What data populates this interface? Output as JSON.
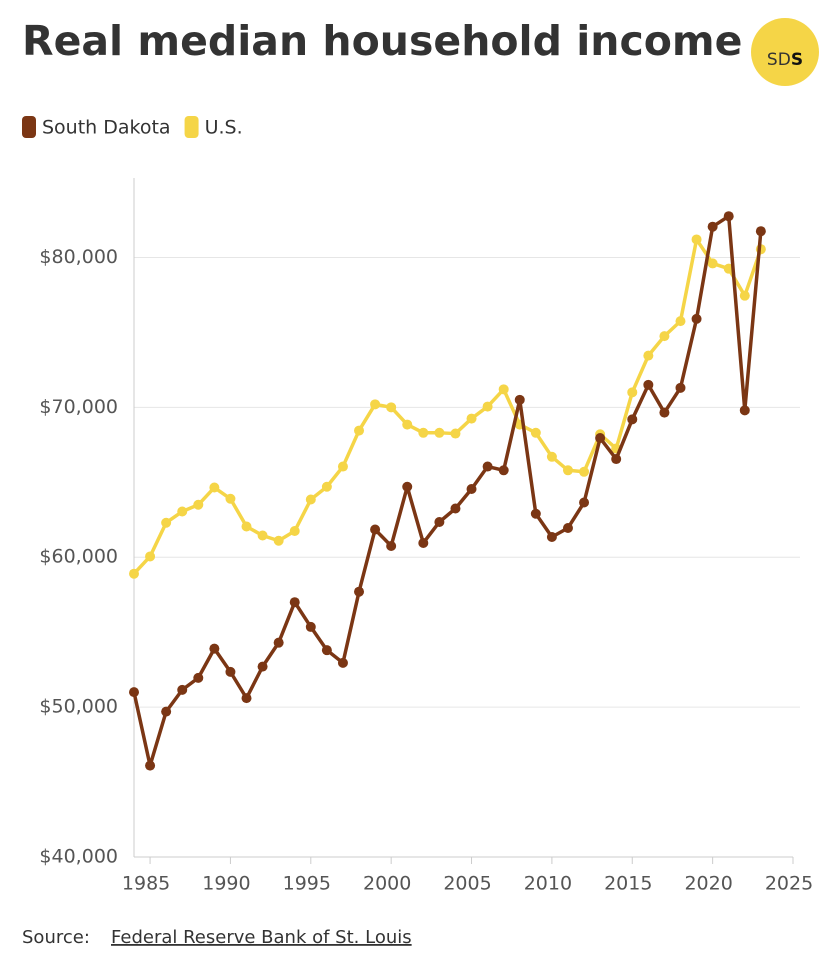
{
  "chart_data": {
    "type": "line",
    "title": "Real median household income",
    "logo": {
      "light": "SD",
      "bold": "S"
    },
    "source_label": "Source:",
    "source_link": "Federal Reserve Bank of St. Louis",
    "x": [
      1984,
      1985,
      1986,
      1987,
      1988,
      1989,
      1990,
      1991,
      1992,
      1993,
      1994,
      1995,
      1996,
      1997,
      1998,
      1999,
      2000,
      2001,
      2002,
      2003,
      2004,
      2005,
      2006,
      2007,
      2008,
      2009,
      2010,
      2011,
      2012,
      2013,
      2014,
      2015,
      2016,
      2017,
      2018,
      2019,
      2020,
      2021,
      2022,
      2023
    ],
    "series": [
      {
        "name": "South Dakota",
        "color": "#7b3614",
        "values": [
          51000,
          46100,
          49700,
          51150,
          51950,
          53900,
          52350,
          50600,
          52700,
          54300,
          57000,
          55350,
          53800,
          52950,
          57700,
          61850,
          60750,
          64700,
          60950,
          62350,
          63250,
          64550,
          66050,
          65800,
          70500,
          62900,
          61350,
          61950,
          63650,
          67950,
          66550,
          69200,
          71500,
          69650,
          71300,
          75900,
          82050,
          82750,
          69800,
          81750
        ]
      },
      {
        "name": "U.S.",
        "color": "#f5d547",
        "values": [
          58900,
          60050,
          62300,
          63050,
          63500,
          64650,
          63900,
          62050,
          61450,
          61100,
          61750,
          63850,
          64700,
          66050,
          68450,
          70200,
          70000,
          68850,
          68300,
          68300,
          68250,
          69250,
          70050,
          71200,
          68850,
          68300,
          66700,
          65800,
          65700,
          68200,
          67250,
          71000,
          73450,
          74750,
          75750,
          81200,
          79600,
          79250,
          77450,
          80550
        ]
      }
    ],
    "xlim": [
      1984,
      2025
    ],
    "xticks": [
      1985,
      1990,
      1995,
      2000,
      2005,
      2010,
      2015,
      2020,
      2025
    ],
    "ylim": [
      40000,
      85300
    ],
    "yticks": [
      {
        "value": 40000,
        "label": "$40,000"
      },
      {
        "value": 50000,
        "label": "$50,000"
      },
      {
        "value": 60000,
        "label": "$60,000"
      },
      {
        "value": 70000,
        "label": "$70,000"
      },
      {
        "value": 80000,
        "label": "$80,000"
      }
    ],
    "grid": true
  }
}
